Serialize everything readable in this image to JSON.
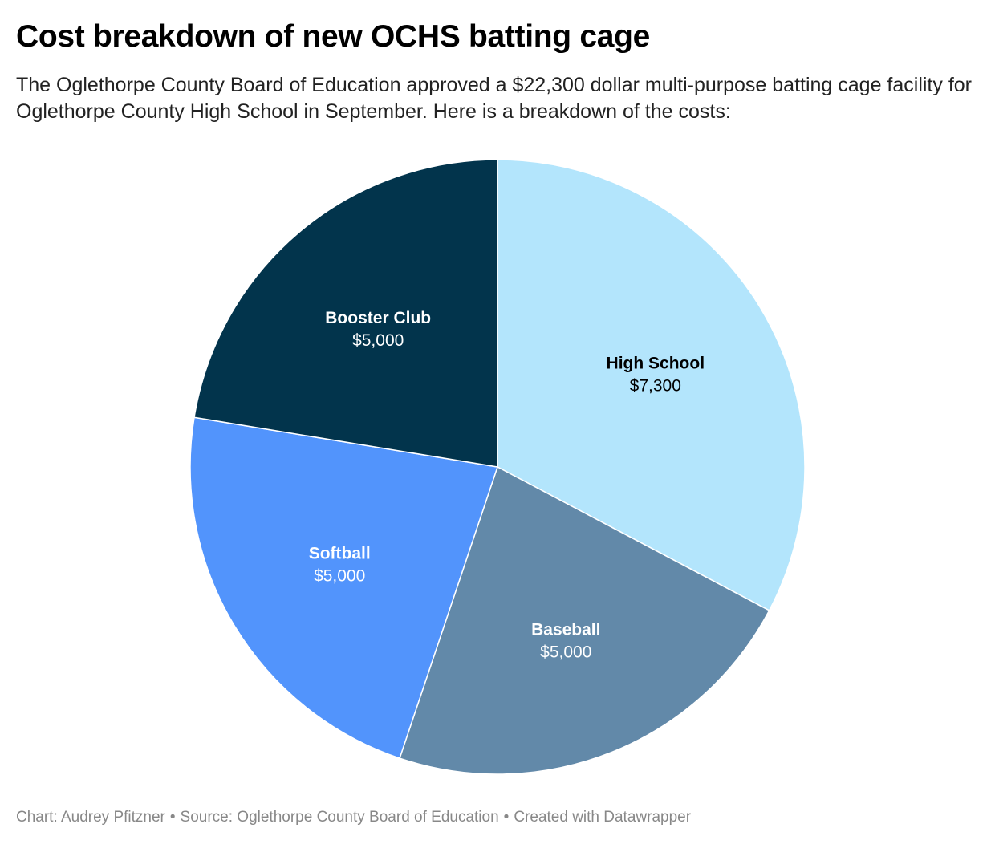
{
  "title": "Cost breakdown of new OCHS batting cage",
  "subtitle": "The Oglethorpe County Board of Education approved a $22,300 dollar multi-purpose batting cage facility for Oglethorpe County High School in September. Here is a breakdown of the costs:",
  "chart_data": {
    "type": "pie",
    "unit_prefix": "$",
    "slices": [
      {
        "name": "High School",
        "value": 7300,
        "display": "$7,300",
        "color": "#b3e5fc",
        "label_color": "#000000"
      },
      {
        "name": "Baseball",
        "value": 5000,
        "display": "$5,000",
        "color": "#6289a9",
        "label_color": "#ffffff"
      },
      {
        "name": "Softball",
        "value": 5000,
        "display": "$5,000",
        "color": "#5294fc",
        "label_color": "#ffffff"
      },
      {
        "name": "Booster Club",
        "value": 5000,
        "display": "$5,000",
        "color": "#02344c",
        "label_color": "#ffffff"
      }
    ],
    "start": "12 o'clock",
    "direction": "clockwise"
  },
  "footer": {
    "chart_credit": "Chart: Audrey Pfitzner",
    "source": "Source: Oglethorpe County Board of Education",
    "created_with": "Created with Datawrapper",
    "separator": "•"
  }
}
